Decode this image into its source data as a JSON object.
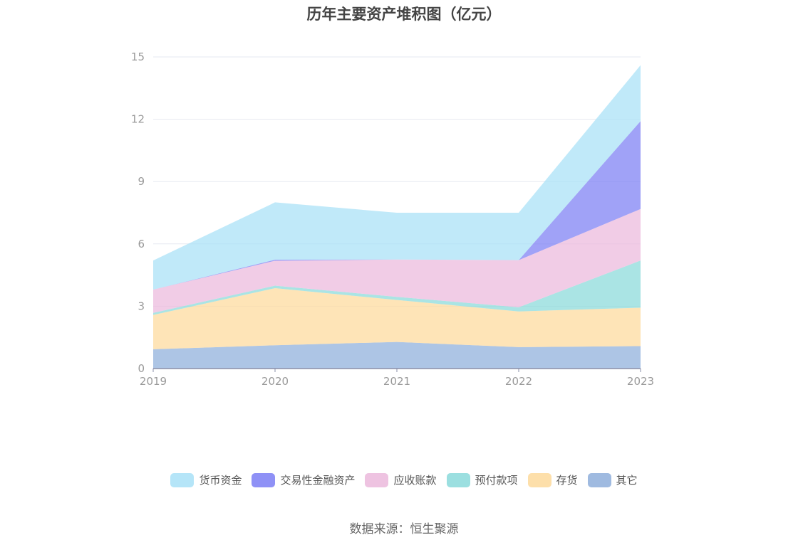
{
  "title": "历年主要资产堆积图（亿元）",
  "source": "数据来源：恒生聚源",
  "chart_data": {
    "type": "area",
    "stacked": true,
    "title": "历年主要资产堆积图（亿元）",
    "xlabel": "",
    "ylabel": "",
    "x": [
      "2019",
      "2020",
      "2021",
      "2022",
      "2023"
    ],
    "ylim": [
      0,
      15
    ],
    "yticks": [
      "0",
      "3",
      "6",
      "9",
      "12",
      "15"
    ],
    "grid": true,
    "legend_position": "bottom",
    "series": [
      {
        "name": "其它",
        "color": "#8eaedb",
        "values": [
          0.93,
          1.12,
          1.28,
          1.03,
          1.08
        ]
      },
      {
        "name": "存货",
        "color": "#fdd99b",
        "values": [
          1.65,
          2.75,
          2.02,
          1.72,
          1.85
        ]
      },
      {
        "name": "预付款项",
        "color": "#89d9da",
        "values": [
          0.1,
          0.12,
          0.15,
          0.2,
          2.27
        ]
      },
      {
        "name": "应收账款",
        "color": "#ebb8dc",
        "values": [
          1.12,
          1.2,
          1.8,
          2.27,
          2.48
        ]
      },
      {
        "name": "交易性金融资产",
        "color": "#7b7ef4",
        "values": [
          0,
          0.05,
          0,
          0,
          4.23
        ]
      },
      {
        "name": "货币资金",
        "color": "#a8e0f7",
        "values": [
          1.4,
          2.76,
          2.25,
          2.28,
          2.69
        ]
      }
    ]
  },
  "legend_order": [
    "货币资金",
    "交易性金融资产",
    "应收账款",
    "预付款项",
    "存货",
    "其它"
  ]
}
